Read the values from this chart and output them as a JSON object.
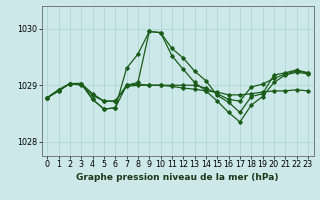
{
  "bg_color": "#cce8e8",
  "grid_color": "#aad0d0",
  "line_color": "#1a5c1a",
  "ylim": [
    1027.75,
    1030.4
  ],
  "yticks": [
    1028,
    1029,
    1030
  ],
  "xlim": [
    -0.5,
    23.5
  ],
  "xticks": [
    0,
    1,
    2,
    3,
    4,
    5,
    6,
    7,
    8,
    9,
    10,
    11,
    12,
    13,
    14,
    15,
    16,
    17,
    18,
    19,
    20,
    21,
    22,
    23
  ],
  "s1": [
    1028.78,
    1028.92,
    1029.03,
    1029.03,
    1028.75,
    1028.58,
    1028.6,
    1029.3,
    1029.55,
    1029.95,
    1029.93,
    1029.65,
    1029.48,
    1029.25,
    1029.08,
    1028.82,
    1028.7,
    1028.52,
    1028.8,
    1028.85,
    1029.18,
    1029.22,
    1029.27,
    1029.22
  ],
  "s2": [
    1028.78,
    1028.92,
    1029.03,
    1029.03,
    1028.75,
    1028.58,
    1028.6,
    1029.0,
    1029.05,
    1029.95,
    1029.93,
    1029.52,
    1029.28,
    1029.05,
    1028.9,
    1028.72,
    1028.52,
    1028.35,
    1028.65,
    1028.8,
    1029.05,
    1029.18,
    1029.23,
    1029.2
  ],
  "s3": [
    1028.78,
    1028.9,
    1029.03,
    1029.0,
    1028.82,
    1028.72,
    1028.72,
    1028.98,
    1029.0,
    1029.0,
    1029.0,
    1028.98,
    1028.95,
    1028.93,
    1028.9,
    1028.88,
    1028.83,
    1028.83,
    1028.85,
    1028.88,
    1028.9,
    1028.9,
    1028.92,
    1028.9
  ],
  "s4": [
    1028.78,
    1028.9,
    1029.03,
    1029.03,
    1028.85,
    1028.72,
    1028.72,
    1029.0,
    1029.02,
    1029.0,
    1029.0,
    1029.0,
    1029.0,
    1029.0,
    1028.95,
    1028.85,
    1028.75,
    1028.72,
    1028.97,
    1029.02,
    1029.12,
    1029.2,
    1029.25,
    1029.22
  ],
  "bottom_label": "Graphe pression niveau de la mer (hPa)",
  "tick_fontsize": 5.8,
  "xlabel_fontsize": 6.5
}
